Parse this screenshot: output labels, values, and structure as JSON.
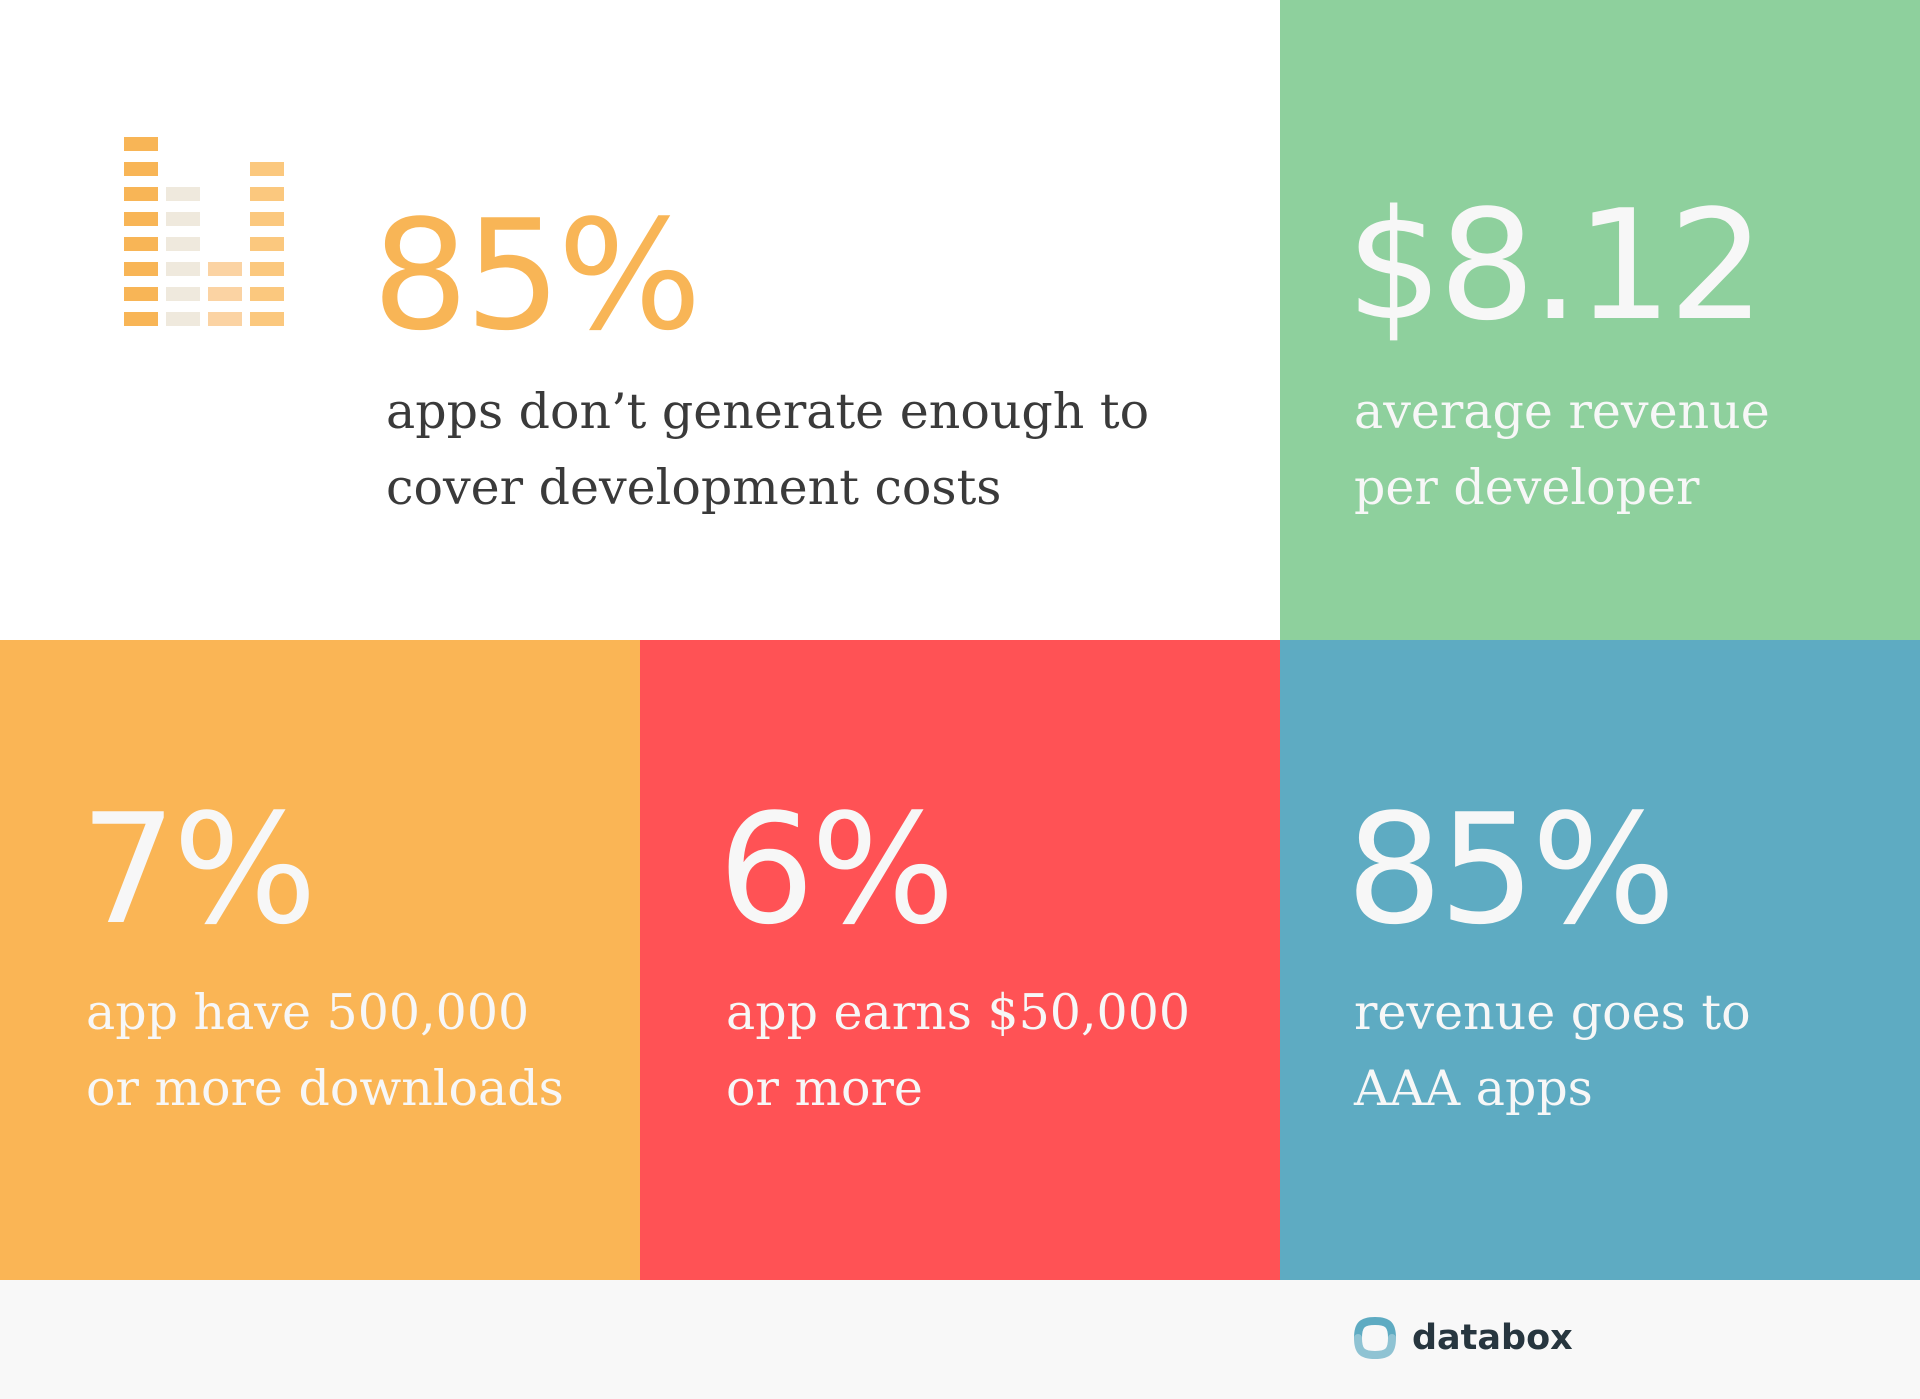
{
  "stats": {
    "apps_not_profitable": {
      "value": "85%",
      "caption_line1": "apps don’t generate enough to",
      "caption_line2": "cover development costs"
    },
    "avg_revenue": {
      "value": "$8.12",
      "caption_line1": "average revenue",
      "caption_line2": "per developer"
    },
    "downloads": {
      "value": "7%",
      "caption_line1": "app have 500,000",
      "caption_line2": "or more downloads"
    },
    "earnings": {
      "value": "6%",
      "caption_line1": "app earns $50,000",
      "caption_line2": "or more"
    },
    "aaa_revenue": {
      "value": "85%",
      "caption_line1": "revenue goes to",
      "caption_line2": "AAA apps"
    }
  },
  "icons": {
    "top_left": "bar-level-meter-icon",
    "footer": "databox-logo-icon"
  },
  "brand": {
    "name": "databox"
  },
  "colors": {
    "green": "#8ed09d",
    "orange": "#fab555",
    "red": "#ff5255",
    "blue": "#5eabc2",
    "headline_orange": "#f8b556",
    "text_dark": "#3a3a3a",
    "text_light": "#f7f7f7",
    "footer_bg": "#f8f8f8"
  }
}
